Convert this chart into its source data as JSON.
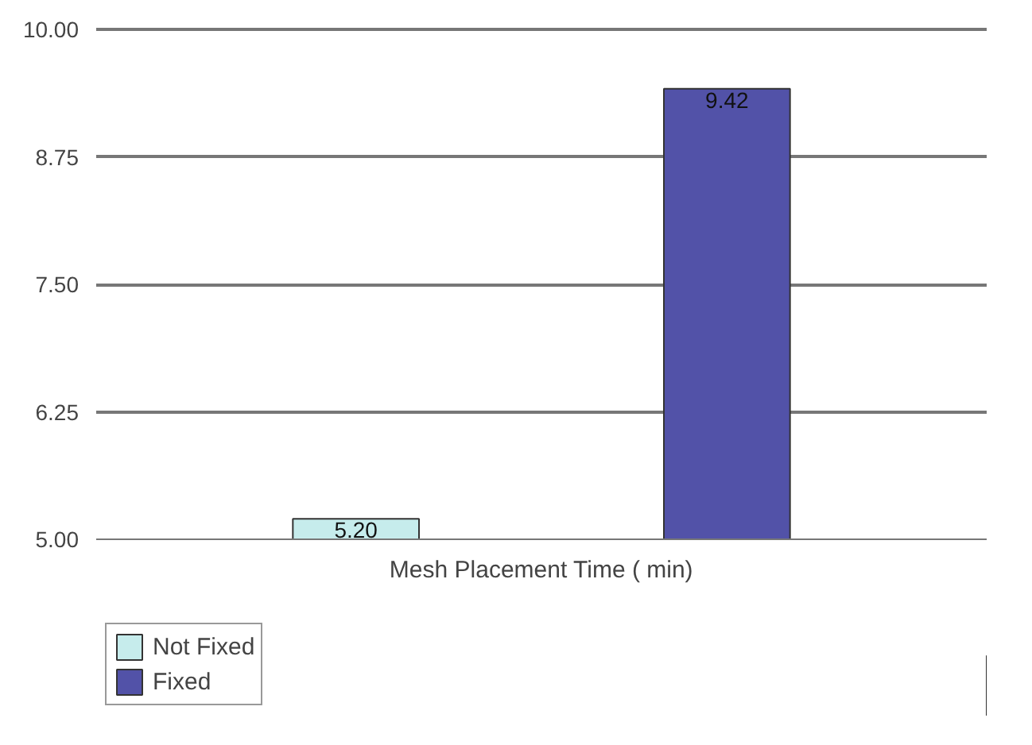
{
  "chart_data": {
    "type": "bar",
    "categories": [
      "Mesh Placement Time ( min)"
    ],
    "series": [
      {
        "name": "Not Fixed",
        "color": "#c6ecec",
        "values": [
          5.2
        ],
        "value_labels": [
          "5.20"
        ]
      },
      {
        "name": "Fixed",
        "color": "#5252a8",
        "values": [
          9.42
        ],
        "value_labels": [
          "9.42"
        ]
      }
    ],
    "ylim": [
      5.0,
      10.0
    ],
    "yticks": [
      {
        "value": 5.0,
        "label": "5.00"
      },
      {
        "value": 6.25,
        "label": "6.25"
      },
      {
        "value": 7.5,
        "label": "7.50"
      },
      {
        "value": 8.75,
        "label": "8.75"
      },
      {
        "value": 10.0,
        "label": "10.00"
      }
    ],
    "grid": "y",
    "legend": "bottom left"
  }
}
